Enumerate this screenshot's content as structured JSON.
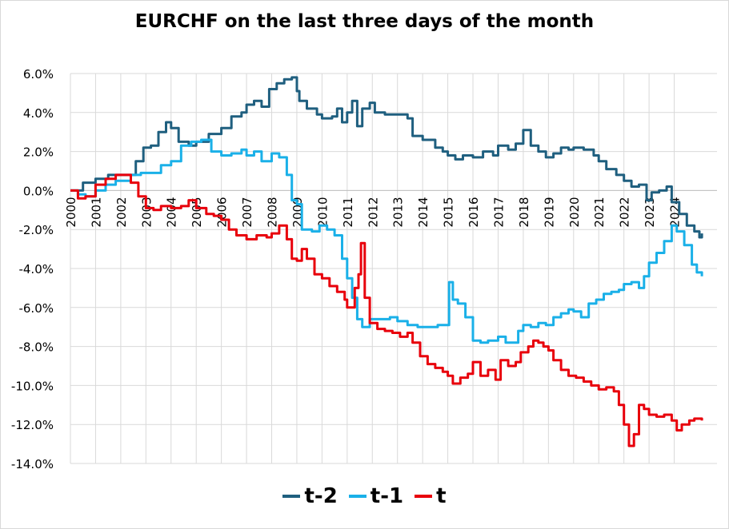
{
  "chart_data": {
    "type": "line",
    "title": "EURCHF on the last three days of the month",
    "xlabel": "",
    "ylabel": "",
    "x_tick_labels": [
      "2000",
      "2001",
      "2002",
      "2003",
      "2004",
      "2005",
      "2006",
      "2007",
      "2008",
      "2009",
      "2010",
      "2011",
      "2012",
      "2013",
      "2014",
      "2015",
      "2016",
      "2017",
      "2018",
      "2019",
      "2020",
      "2021",
      "2022",
      "2023",
      "2024"
    ],
    "y_tick_labels": [
      "6.0%",
      "4.0%",
      "2.0%",
      "0.0%",
      "-2.0%",
      "-4.0%",
      "-6.0%",
      "-8.0%",
      "-10.0%",
      "-12.0%",
      "-14.0%"
    ],
    "ylim": [
      -14,
      6
    ],
    "xlim": [
      2000,
      2025.7
    ],
    "y_unit": "%",
    "grid": true,
    "legend_position": "bottom",
    "series": [
      {
        "name": "t-2",
        "color": "#1f5f7f",
        "points": [
          [
            2000,
            0
          ],
          [
            2000.5,
            0.4
          ],
          [
            2001,
            0.6
          ],
          [
            2001.5,
            0.8
          ],
          [
            2002,
            0.8
          ],
          [
            2002.4,
            0.8
          ],
          [
            2002.6,
            1.5
          ],
          [
            2002.9,
            2.2
          ],
          [
            2003.2,
            2.3
          ],
          [
            2003.5,
            3.0
          ],
          [
            2003.8,
            3.5
          ],
          [
            2004.0,
            3.2
          ],
          [
            2004.3,
            2.5
          ],
          [
            2004.7,
            2.3
          ],
          [
            2005.0,
            2.5
          ],
          [
            2005.5,
            2.9
          ],
          [
            2006.0,
            3.2
          ],
          [
            2006.4,
            3.8
          ],
          [
            2006.8,
            4.0
          ],
          [
            2007.0,
            4.4
          ],
          [
            2007.3,
            4.6
          ],
          [
            2007.6,
            4.3
          ],
          [
            2007.9,
            5.2
          ],
          [
            2008.2,
            5.5
          ],
          [
            2008.5,
            5.7
          ],
          [
            2008.8,
            5.8
          ],
          [
            2009.0,
            5.1
          ],
          [
            2009.1,
            4.6
          ],
          [
            2009.4,
            4.2
          ],
          [
            2009.8,
            3.9
          ],
          [
            2010.0,
            3.7
          ],
          [
            2010.4,
            3.8
          ],
          [
            2010.6,
            4.2
          ],
          [
            2010.8,
            3.5
          ],
          [
            2011.0,
            4.0
          ],
          [
            2011.2,
            4.6
          ],
          [
            2011.4,
            3.3
          ],
          [
            2011.6,
            4.2
          ],
          [
            2011.9,
            4.5
          ],
          [
            2012.1,
            4.0
          ],
          [
            2012.5,
            3.9
          ],
          [
            2013.0,
            3.9
          ],
          [
            2013.4,
            3.7
          ],
          [
            2013.6,
            2.8
          ],
          [
            2014.0,
            2.6
          ],
          [
            2014.5,
            2.2
          ],
          [
            2014.8,
            2.0
          ],
          [
            2015.0,
            1.8
          ],
          [
            2015.3,
            1.6
          ],
          [
            2015.6,
            1.8
          ],
          [
            2016.0,
            1.7
          ],
          [
            2016.4,
            2.0
          ],
          [
            2016.8,
            1.8
          ],
          [
            2017.0,
            2.3
          ],
          [
            2017.4,
            2.1
          ],
          [
            2017.7,
            2.4
          ],
          [
            2018.0,
            3.1
          ],
          [
            2018.3,
            2.3
          ],
          [
            2018.6,
            2.0
          ],
          [
            2018.9,
            1.7
          ],
          [
            2019.2,
            1.9
          ],
          [
            2019.5,
            2.2
          ],
          [
            2019.8,
            2.1
          ],
          [
            2020.0,
            2.2
          ],
          [
            2020.4,
            2.1
          ],
          [
            2020.8,
            1.8
          ],
          [
            2021.0,
            1.5
          ],
          [
            2021.3,
            1.1
          ],
          [
            2021.7,
            0.8
          ],
          [
            2022.0,
            0.5
          ],
          [
            2022.3,
            0.2
          ],
          [
            2022.6,
            0.3
          ],
          [
            2022.9,
            -0.5
          ],
          [
            2023.1,
            -0.1
          ],
          [
            2023.4,
            0.0
          ],
          [
            2023.7,
            0.2
          ],
          [
            2023.9,
            -0.6
          ],
          [
            2024.2,
            -1.2
          ],
          [
            2024.5,
            -1.8
          ],
          [
            2024.8,
            -2.1
          ],
          [
            2025.0,
            -2.4
          ],
          [
            2025.1,
            -2.2
          ]
        ]
      },
      {
        "name": "t-1",
        "color": "#1ab0e8",
        "points": [
          [
            2000,
            0
          ],
          [
            2000.3,
            -0.2
          ],
          [
            2000.6,
            -0.3
          ],
          [
            2001.0,
            0.0
          ],
          [
            2001.4,
            0.3
          ],
          [
            2001.8,
            0.5
          ],
          [
            2002.0,
            0.5
          ],
          [
            2002.4,
            0.8
          ],
          [
            2002.8,
            0.9
          ],
          [
            2003.2,
            0.9
          ],
          [
            2003.6,
            1.3
          ],
          [
            2004.0,
            1.5
          ],
          [
            2004.4,
            2.3
          ],
          [
            2004.8,
            2.5
          ],
          [
            2005.2,
            2.6
          ],
          [
            2005.6,
            2.0
          ],
          [
            2006.0,
            1.8
          ],
          [
            2006.4,
            1.9
          ],
          [
            2006.8,
            2.1
          ],
          [
            2007.0,
            1.8
          ],
          [
            2007.3,
            2.0
          ],
          [
            2007.6,
            1.5
          ],
          [
            2008.0,
            1.9
          ],
          [
            2008.3,
            1.7
          ],
          [
            2008.6,
            0.8
          ],
          [
            2008.8,
            -0.5
          ],
          [
            2009.0,
            -0.7
          ],
          [
            2009.2,
            -2.0
          ],
          [
            2009.6,
            -2.1
          ],
          [
            2009.9,
            -1.8
          ],
          [
            2010.2,
            -2.0
          ],
          [
            2010.5,
            -2.3
          ],
          [
            2010.8,
            -3.5
          ],
          [
            2011.0,
            -4.5
          ],
          [
            2011.2,
            -5.5
          ],
          [
            2011.4,
            -6.6
          ],
          [
            2011.6,
            -7.0
          ],
          [
            2011.9,
            -6.6
          ],
          [
            2012.3,
            -6.6
          ],
          [
            2012.7,
            -6.5
          ],
          [
            2013.0,
            -6.7
          ],
          [
            2013.4,
            -6.9
          ],
          [
            2013.8,
            -7.0
          ],
          [
            2014.2,
            -7.0
          ],
          [
            2014.6,
            -6.9
          ],
          [
            2015.0,
            -6.9
          ],
          [
            2015.05,
            -4.7
          ],
          [
            2015.2,
            -5.6
          ],
          [
            2015.4,
            -5.8
          ],
          [
            2015.7,
            -6.5
          ],
          [
            2016.0,
            -7.7
          ],
          [
            2016.3,
            -7.8
          ],
          [
            2016.6,
            -7.7
          ],
          [
            2017.0,
            -7.5
          ],
          [
            2017.3,
            -7.8
          ],
          [
            2017.6,
            -7.8
          ],
          [
            2017.8,
            -7.2
          ],
          [
            2018.0,
            -6.9
          ],
          [
            2018.3,
            -7.0
          ],
          [
            2018.6,
            -6.8
          ],
          [
            2018.9,
            -6.9
          ],
          [
            2019.2,
            -6.5
          ],
          [
            2019.5,
            -6.3
          ],
          [
            2019.8,
            -6.1
          ],
          [
            2020.0,
            -6.2
          ],
          [
            2020.3,
            -6.5
          ],
          [
            2020.6,
            -5.8
          ],
          [
            2020.9,
            -5.6
          ],
          [
            2021.2,
            -5.3
          ],
          [
            2021.5,
            -5.2
          ],
          [
            2021.8,
            -5.1
          ],
          [
            2022.0,
            -4.8
          ],
          [
            2022.3,
            -4.7
          ],
          [
            2022.6,
            -5.0
          ],
          [
            2022.8,
            -4.4
          ],
          [
            2023.0,
            -3.7
          ],
          [
            2023.3,
            -3.2
          ],
          [
            2023.6,
            -2.6
          ],
          [
            2023.9,
            -1.8
          ],
          [
            2024.1,
            -2.1
          ],
          [
            2024.4,
            -2.8
          ],
          [
            2024.7,
            -3.8
          ],
          [
            2024.9,
            -4.2
          ],
          [
            2025.1,
            -4.4
          ]
        ]
      },
      {
        "name": "t",
        "color": "#e8000b",
        "points": [
          [
            2000,
            0
          ],
          [
            2000.3,
            -0.4
          ],
          [
            2000.6,
            -0.3
          ],
          [
            2001.0,
            0.3
          ],
          [
            2001.4,
            0.6
          ],
          [
            2001.8,
            0.8
          ],
          [
            2002.2,
            0.8
          ],
          [
            2002.4,
            0.4
          ],
          [
            2002.7,
            -0.3
          ],
          [
            2003.0,
            -0.9
          ],
          [
            2003.3,
            -1.0
          ],
          [
            2003.6,
            -0.8
          ],
          [
            2004.0,
            -0.9
          ],
          [
            2004.4,
            -0.8
          ],
          [
            2004.7,
            -0.5
          ],
          [
            2005.0,
            -0.9
          ],
          [
            2005.4,
            -1.2
          ],
          [
            2005.7,
            -1.3
          ],
          [
            2006.0,
            -1.5
          ],
          [
            2006.3,
            -2.0
          ],
          [
            2006.6,
            -2.3
          ],
          [
            2007.0,
            -2.5
          ],
          [
            2007.4,
            -2.3
          ],
          [
            2007.8,
            -2.4
          ],
          [
            2008.0,
            -2.2
          ],
          [
            2008.3,
            -1.8
          ],
          [
            2008.6,
            -2.5
          ],
          [
            2008.8,
            -3.5
          ],
          [
            2009.0,
            -3.6
          ],
          [
            2009.2,
            -3.0
          ],
          [
            2009.4,
            -3.5
          ],
          [
            2009.7,
            -4.3
          ],
          [
            2010.0,
            -4.5
          ],
          [
            2010.3,
            -4.9
          ],
          [
            2010.6,
            -5.2
          ],
          [
            2010.9,
            -5.6
          ],
          [
            2011.0,
            -6.0
          ],
          [
            2011.3,
            -5.0
          ],
          [
            2011.45,
            -4.3
          ],
          [
            2011.55,
            -2.7
          ],
          [
            2011.7,
            -5.5
          ],
          [
            2011.9,
            -6.8
          ],
          [
            2012.2,
            -7.1
          ],
          [
            2012.5,
            -7.2
          ],
          [
            2012.8,
            -7.3
          ],
          [
            2013.1,
            -7.5
          ],
          [
            2013.4,
            -7.3
          ],
          [
            2013.6,
            -7.8
          ],
          [
            2013.9,
            -8.5
          ],
          [
            2014.2,
            -8.9
          ],
          [
            2014.5,
            -9.1
          ],
          [
            2014.8,
            -9.3
          ],
          [
            2015.0,
            -9.5
          ],
          [
            2015.2,
            -9.9
          ],
          [
            2015.5,
            -9.6
          ],
          [
            2015.8,
            -9.4
          ],
          [
            2016.0,
            -8.8
          ],
          [
            2016.3,
            -9.5
          ],
          [
            2016.6,
            -9.2
          ],
          [
            2016.9,
            -9.7
          ],
          [
            2017.1,
            -8.7
          ],
          [
            2017.4,
            -9.0
          ],
          [
            2017.7,
            -8.8
          ],
          [
            2017.9,
            -8.3
          ],
          [
            2018.2,
            -8.0
          ],
          [
            2018.4,
            -7.7
          ],
          [
            2018.6,
            -7.8
          ],
          [
            2018.8,
            -8.0
          ],
          [
            2019.0,
            -8.2
          ],
          [
            2019.2,
            -8.7
          ],
          [
            2019.5,
            -9.2
          ],
          [
            2019.8,
            -9.5
          ],
          [
            2020.1,
            -9.6
          ],
          [
            2020.4,
            -9.8
          ],
          [
            2020.7,
            -10.0
          ],
          [
            2021.0,
            -10.2
          ],
          [
            2021.3,
            -10.1
          ],
          [
            2021.6,
            -10.3
          ],
          [
            2021.8,
            -11.0
          ],
          [
            2022.0,
            -12.0
          ],
          [
            2022.2,
            -13.1
          ],
          [
            2022.4,
            -12.5
          ],
          [
            2022.6,
            -11.0
          ],
          [
            2022.8,
            -11.2
          ],
          [
            2023.0,
            -11.5
          ],
          [
            2023.3,
            -11.6
          ],
          [
            2023.6,
            -11.5
          ],
          [
            2023.9,
            -11.8
          ],
          [
            2024.1,
            -12.3
          ],
          [
            2024.3,
            -12.0
          ],
          [
            2024.6,
            -11.8
          ],
          [
            2024.8,
            -11.7
          ],
          [
            2025.1,
            -11.8
          ]
        ]
      }
    ]
  }
}
